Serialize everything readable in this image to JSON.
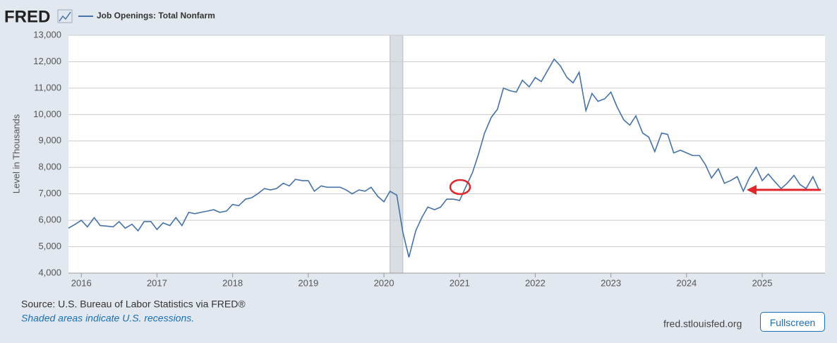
{
  "ui": {
    "logo": "FRED",
    "site": "fred.stlouisfed.org",
    "button": "Fullscreen"
  },
  "chart_data": {
    "type": "line",
    "y_label": "Level in Thousands",
    "source": "Source: U.S. Bureau of Labor Statistics via FRED®",
    "note": "Shaded areas indicate U.S. recessions.",
    "x": [
      2015.83,
      2015.92,
      2016.0,
      2016.08,
      2016.17,
      2016.25,
      2016.33,
      2016.42,
      2016.5,
      2016.58,
      2016.67,
      2016.75,
      2016.83,
      2016.92,
      2017.0,
      2017.08,
      2017.17,
      2017.25,
      2017.33,
      2017.42,
      2017.5,
      2017.58,
      2017.67,
      2017.75,
      2017.83,
      2017.92,
      2018.0,
      2018.08,
      2018.17,
      2018.25,
      2018.33,
      2018.42,
      2018.5,
      2018.58,
      2018.67,
      2018.75,
      2018.83,
      2018.92,
      2019.0,
      2019.08,
      2019.17,
      2019.25,
      2019.33,
      2019.42,
      2019.5,
      2019.58,
      2019.67,
      2019.75,
      2019.83,
      2019.92,
      2020.0,
      2020.08,
      2020.17,
      2020.25,
      2020.33,
      2020.42,
      2020.5,
      2020.58,
      2020.67,
      2020.75,
      2020.83,
      2020.92,
      2021.0,
      2021.08,
      2021.17,
      2021.25,
      2021.33,
      2021.42,
      2021.5,
      2021.58,
      2021.67,
      2021.75,
      2021.83,
      2021.92,
      2022.0,
      2022.08,
      2022.17,
      2022.25,
      2022.33,
      2022.42,
      2022.5,
      2022.58,
      2022.67,
      2022.75,
      2022.83,
      2022.92,
      2023.0,
      2023.08,
      2023.17,
      2023.25,
      2023.33,
      2023.42,
      2023.5,
      2023.58,
      2023.67,
      2023.75,
      2023.83,
      2023.92,
      2024.0,
      2024.08,
      2024.17,
      2024.25,
      2024.33,
      2024.42,
      2024.5,
      2024.58,
      2024.67,
      2024.75,
      2024.83,
      2024.92,
      2025.0,
      2025.08,
      2025.17,
      2025.25,
      2025.33,
      2025.42,
      2025.5,
      2025.58,
      2025.67,
      2025.75
    ],
    "series": [
      {
        "name": "Job Openings: Total Nonfarm",
        "color": "#4572a7",
        "values": [
          5700,
          5850,
          6000,
          5750,
          6100,
          5800,
          5780,
          5750,
          5950,
          5700,
          5850,
          5600,
          5950,
          5950,
          5650,
          5900,
          5800,
          6100,
          5800,
          6300,
          6250,
          6300,
          6350,
          6400,
          6300,
          6350,
          6600,
          6550,
          6800,
          6850,
          7000,
          7200,
          7150,
          7200,
          7400,
          7300,
          7550,
          7500,
          7500,
          7100,
          7300,
          7250,
          7250,
          7250,
          7150,
          7000,
          7150,
          7100,
          7250,
          6900,
          6700,
          7100,
          6950,
          5550,
          4600,
          5600,
          6100,
          6500,
          6400,
          6500,
          6800,
          6800,
          6750,
          7250,
          7800,
          8500,
          9300,
          9900,
          10200,
          11000,
          10900,
          10850,
          11300,
          11050,
          11400,
          11250,
          11700,
          12100,
          11850,
          11400,
          11200,
          11600,
          10150,
          10800,
          10500,
          10600,
          10850,
          10300,
          9800,
          9600,
          9950,
          9300,
          9150,
          8600,
          9300,
          9250,
          8550,
          8650,
          8550,
          8450,
          8450,
          8100,
          7600,
          7950,
          7400,
          7500,
          7650,
          7100,
          7600,
          8000,
          7500,
          7750,
          7450,
          7200,
          7400,
          7700,
          7350,
          7200,
          7650,
          7150
        ]
      }
    ],
    "recessions": [
      [
        2020.08,
        2020.25
      ]
    ],
    "xlim": [
      2015.83,
      2025.83
    ],
    "xticks": [
      2016,
      2017,
      2018,
      2019,
      2020,
      2021,
      2022,
      2023,
      2024,
      2025
    ],
    "ylim": [
      4000,
      13000
    ],
    "yticks": [
      {
        "value": 4000,
        "label": "4,000"
      },
      {
        "value": 5000,
        "label": "5,000"
      },
      {
        "value": 6000,
        "label": "6,000"
      },
      {
        "value": 7000,
        "label": "7,000"
      },
      {
        "value": 8000,
        "label": "8,000"
      },
      {
        "value": 9000,
        "label": "9,000"
      },
      {
        "value": 10000,
        "label": "10,000"
      },
      {
        "value": 11000,
        "label": "11,000"
      },
      {
        "value": 12000,
        "label": "12,000"
      },
      {
        "value": 13000,
        "label": "13,000"
      }
    ],
    "grid": true
  }
}
